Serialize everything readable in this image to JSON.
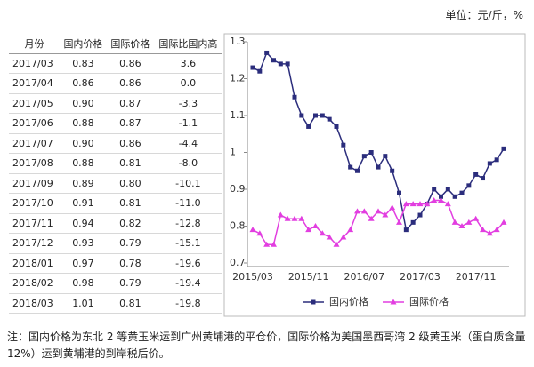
{
  "unit": "单位：元/斤，%",
  "table": {
    "headers": [
      "月份",
      "国内价格",
      "国际价格",
      "国际比国内高"
    ],
    "rows": [
      [
        "2017/03",
        "0.83",
        "0.86",
        "3.6"
      ],
      [
        "2017/04",
        "0.86",
        "0.86",
        "0.0"
      ],
      [
        "2017/05",
        "0.90",
        "0.87",
        "-3.3"
      ],
      [
        "2017/06",
        "0.88",
        "0.87",
        "-1.1"
      ],
      [
        "2017/07",
        "0.90",
        "0.86",
        "-4.4"
      ],
      [
        "2017/08",
        "0.88",
        "0.81",
        "-8.0"
      ],
      [
        "2017/09",
        "0.89",
        "0.80",
        "-10.1"
      ],
      [
        "2017/10",
        "0.91",
        "0.81",
        "-11.0"
      ],
      [
        "2017/11",
        "0.94",
        "0.82",
        "-12.8"
      ],
      [
        "2017/12",
        "0.93",
        "0.79",
        "-15.1"
      ],
      [
        "2018/01",
        "0.97",
        "0.78",
        "-19.6"
      ],
      [
        "2018/02",
        "0.98",
        "0.79",
        "-19.4"
      ],
      [
        "2018/03",
        "1.01",
        "0.81",
        "-19.8"
      ]
    ]
  },
  "chart_data": {
    "type": "line",
    "categories": [
      "2015/03",
      null,
      null,
      null,
      null,
      null,
      null,
      null,
      "2015/11",
      null,
      null,
      null,
      null,
      null,
      null,
      null,
      "2016/07",
      null,
      null,
      null,
      null,
      null,
      null,
      null,
      "2017/03",
      null,
      null,
      null,
      null,
      null,
      null,
      null,
      "2017/11",
      null,
      null,
      null,
      null
    ],
    "series": [
      {
        "name": "国内价格",
        "color": "#2b2d7c",
        "marker": "square",
        "values": [
          1.23,
          1.22,
          1.27,
          1.25,
          1.24,
          1.24,
          1.15,
          1.1,
          1.07,
          1.1,
          1.1,
          1.09,
          1.07,
          1.02,
          0.96,
          0.95,
          0.99,
          1.0,
          0.96,
          0.99,
          0.95,
          0.89,
          0.79,
          0.81,
          0.83,
          0.86,
          0.9,
          0.88,
          0.9,
          0.88,
          0.89,
          0.91,
          0.94,
          0.93,
          0.97,
          0.98,
          1.01
        ]
      },
      {
        "name": "国际价格",
        "color": "#e23ee0",
        "marker": "triangle",
        "values": [
          0.79,
          0.78,
          0.75,
          0.75,
          0.83,
          0.82,
          0.82,
          0.82,
          0.79,
          0.8,
          0.78,
          0.77,
          0.75,
          0.77,
          0.79,
          0.84,
          0.84,
          0.82,
          0.84,
          0.83,
          0.85,
          0.81,
          0.86,
          0.86,
          0.86,
          0.86,
          0.87,
          0.87,
          0.86,
          0.81,
          0.8,
          0.81,
          0.82,
          0.79,
          0.78,
          0.79,
          0.81
        ]
      }
    ],
    "ylim": [
      0.7,
      1.3
    ],
    "yticks": [
      0.7,
      0.8,
      0.9,
      1.0,
      1.1,
      1.2,
      1.3
    ],
    "legend": "bottom"
  },
  "note": "注：国内价格为东北 2 等黄玉米运到广州黄埔港的平仓价，国际价格为美国墨西哥湾 2 级黄玉米（蛋白质含量 12%）运到黄埔港的到岸税后价。"
}
